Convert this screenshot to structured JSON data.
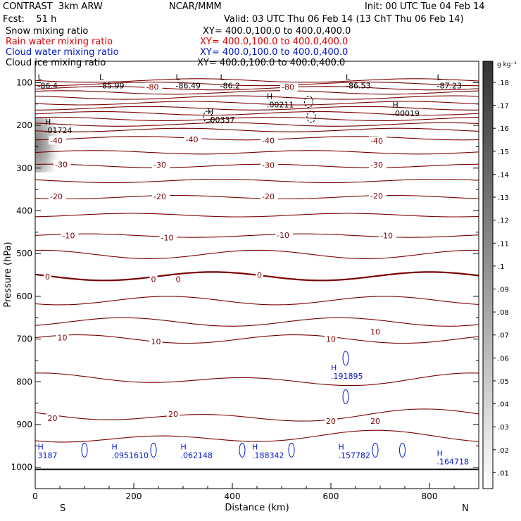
{
  "header": {
    "model": "CONTRAST  3km ARW",
    "org": "NCAR/MMM",
    "init": "Init: 00 UTC Tue 04 Feb 14",
    "fcst": "Fcst:    51 h",
    "valid": "Valid: 03 UTC Thu 06 Feb 14 (13 ChT Thu 06 Feb 14)",
    "fields": [
      {
        "name": "Snow mixing ratio",
        "xy": "XY= 400.0,100.0 to 400.0,400.0",
        "color": "#000000"
      },
      {
        "name": "Rain water mixing ratio",
        "xy": "XY= 400.0,100.0 to 400.0,400.0",
        "color": "#e00000"
      },
      {
        "name": "Cloud water mixing ratio",
        "xy": "XY= 400.0,100.0 to 400.0,400.0",
        "color": "#0018c8"
      },
      {
        "name": "Cloud ice mixing ratio",
        "xy": "XY= 400.0,100.0 to 400.0,400.0",
        "color": "#000000"
      }
    ]
  },
  "chart_data": {
    "type": "contour",
    "xlabel": "Distance (km)",
    "ylabel": "Pressure (hPa)",
    "xlim": [
      0,
      900
    ],
    "ylim": [
      1050,
      50
    ],
    "x_ticks": [
      0,
      200,
      400,
      600,
      800
    ],
    "y_ticks": [
      100,
      200,
      300,
      400,
      500,
      600,
      700,
      800,
      900,
      1000
    ],
    "x_end_labels": {
      "left": "S",
      "right": "N"
    },
    "colorbar": {
      "unit": "g kg⁻¹",
      "ticks": [
        ".18",
        ".17",
        ".16",
        ".15",
        ".14",
        ".13",
        ".12",
        ".11",
        ".1",
        ".09",
        ".08",
        ".07",
        ".06",
        ".05",
        ".04",
        ".03",
        ".02",
        ".01"
      ]
    },
    "temperature_contour_labels": [
      {
        "label": "-80",
        "x": 225,
        "p": 110
      },
      {
        "label": "-80",
        "x": 500,
        "p": 110
      },
      {
        "label": "-40",
        "x": 30,
        "p": 235
      },
      {
        "label": "-40",
        "x": 305,
        "p": 233
      },
      {
        "label": "-40",
        "x": 460,
        "p": 235
      },
      {
        "label": "-40",
        "x": 680,
        "p": 236
      },
      {
        "label": "-30",
        "x": 40,
        "p": 291
      },
      {
        "label": "-30",
        "x": 240,
        "p": 292
      },
      {
        "label": "-30",
        "x": 460,
        "p": 293
      },
      {
        "label": "-30",
        "x": 680,
        "p": 292
      },
      {
        "label": "-20",
        "x": 30,
        "p": 366
      },
      {
        "label": "-20",
        "x": 240,
        "p": 366
      },
      {
        "label": "-20",
        "x": 460,
        "p": 366
      },
      {
        "label": "-20",
        "x": 680,
        "p": 365
      },
      {
        "label": "-10",
        "x": 55,
        "p": 458
      },
      {
        "label": "-10",
        "x": 255,
        "p": 463
      },
      {
        "label": "-10",
        "x": 490,
        "p": 457
      },
      {
        "label": "-10",
        "x": 700,
        "p": 458
      },
      {
        "label": "0",
        "x": 20,
        "p": 554
      },
      {
        "label": "0",
        "x": 235,
        "p": 560
      },
      {
        "label": "0",
        "x": 285,
        "p": 560
      },
      {
        "label": "0",
        "x": 450,
        "p": 550
      },
      {
        "label": "10",
        "x": 45,
        "p": 697
      },
      {
        "label": "10",
        "x": 235,
        "p": 706
      },
      {
        "label": "10",
        "x": 590,
        "p": 700
      },
      {
        "label": "10",
        "x": 680,
        "p": 683
      },
      {
        "label": "20",
        "x": 25,
        "p": 885
      },
      {
        "label": "20",
        "x": 270,
        "p": 875
      },
      {
        "label": "20",
        "x": 590,
        "p": 892
      },
      {
        "label": "20",
        "x": 680,
        "p": 892
      }
    ],
    "temperature_levels_hpa": [
      95,
      103,
      113,
      123,
      135,
      148,
      160,
      172,
      185,
      198,
      211,
      230,
      263,
      295,
      330,
      368,
      410,
      458,
      502,
      553,
      610,
      660,
      700,
      795,
      880,
      930
    ],
    "extrema": [
      {
        "type": "L",
        "value": "-86.4",
        "x": 5,
        "p": 110,
        "color": "#000000"
      },
      {
        "type": "L",
        "value": "-85.99",
        "x": 130,
        "p": 110,
        "color": "#000000"
      },
      {
        "type": "L",
        "value": "-86.49",
        "x": 285,
        "p": 110,
        "color": "#000000"
      },
      {
        "type": "L",
        "value": "-86.2",
        "x": 375,
        "p": 110,
        "color": "#000000"
      },
      {
        "type": "L",
        "value": "-86.53",
        "x": 630,
        "p": 110,
        "color": "#000000"
      },
      {
        "type": "L",
        "value": "-87.23",
        "x": 815,
        "p": 110,
        "color": "#000000"
      },
      {
        "type": "H",
        "value": ".00211",
        "x": 470,
        "p": 155,
        "color": "#000000"
      },
      {
        "type": "H",
        "value": ".00337",
        "x": 350,
        "p": 190,
        "color": "#000000"
      },
      {
        "type": "H",
        "value": ".00019",
        "x": 725,
        "p": 175,
        "color": "#000000"
      },
      {
        "type": "H",
        "value": ".01724",
        "x": 20,
        "p": 215,
        "color": "#000000"
      },
      {
        "type": "H",
        "value": ".191895",
        "x": 600,
        "p": 790,
        "color": "#0018c8"
      },
      {
        "type": "H",
        "value": "3187",
        "x": 5,
        "p": 975,
        "color": "#0018c8"
      },
      {
        "type": "H",
        "value": ".0951610",
        "x": 155,
        "p": 975,
        "color": "#0018c8"
      },
      {
        "type": "H",
        "value": ".062148",
        "x": 295,
        "p": 975,
        "color": "#0018c8"
      },
      {
        "type": "H",
        "value": ".188342",
        "x": 440,
        "p": 975,
        "color": "#0018c8"
      },
      {
        "type": "H",
        "value": ".157782",
        "x": 615,
        "p": 975,
        "color": "#0018c8"
      },
      {
        "type": "H",
        "value": ".164718",
        "x": 815,
        "p": 990,
        "color": "#0018c8"
      }
    ]
  }
}
